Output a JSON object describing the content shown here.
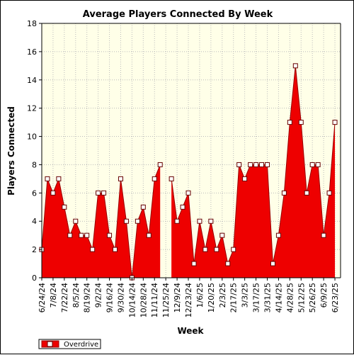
{
  "chart_data": {
    "type": "area",
    "title": "Average Players Connected By Week",
    "xlabel": "Week",
    "ylabel": "Players Connected",
    "ylim": [
      0,
      18
    ],
    "y_ticks": [
      0,
      2,
      4,
      6,
      8,
      10,
      12,
      14,
      16,
      18
    ],
    "grid": true,
    "legend_position": "bottom-left",
    "colors": {
      "area": "#ee0000",
      "line": "#990000",
      "plot_bg": "#ffffe8",
      "grid": "#bbbbbb"
    },
    "x_labels": [
      "6/24/24",
      "7/8/24",
      "7/22/24",
      "8/5/24",
      "8/19/24",
      "9/2/24",
      "9/16/24",
      "9/30/24",
      "10/14/24",
      "10/28/24",
      "11/11/24",
      "11/25/24",
      "12/9/24",
      "12/23/24",
      "1/6/25",
      "1/20/25",
      "2/3/25",
      "2/17/25",
      "3/3/25",
      "3/17/25",
      "3/31/25",
      "4/14/25",
      "4/28/25",
      "5/12/25",
      "5/26/25",
      "6/9/25",
      "6/23/25"
    ],
    "x": [
      "6/24/24",
      "7/1/24",
      "7/8/24",
      "7/15/24",
      "7/22/24",
      "7/29/24",
      "8/5/24",
      "8/12/24",
      "8/19/24",
      "8/26/24",
      "9/2/24",
      "9/9/24",
      "9/16/24",
      "9/23/24",
      "9/30/24",
      "10/7/24",
      "10/14/24",
      "10/21/24",
      "10/28/24",
      "11/4/24",
      "11/11/24",
      "11/18/24",
      "11/25/24",
      "12/2/24",
      "12/9/24",
      "12/16/24",
      "12/23/24",
      "12/30/24",
      "1/6/25",
      "1/13/25",
      "1/20/25",
      "1/27/25",
      "2/3/25",
      "2/10/25",
      "2/17/25",
      "2/24/25",
      "3/3/25",
      "3/10/25",
      "3/17/25",
      "3/24/25",
      "3/31/25",
      "4/7/25",
      "4/14/25",
      "4/21/25",
      "4/28/25",
      "5/5/25",
      "5/12/25",
      "5/19/25",
      "5/26/25",
      "6/2/25",
      "6/9/25",
      "6/16/25",
      "6/23/25",
      "6/30/25"
    ],
    "series": [
      {
        "name": "Overdrive",
        "values": [
          2,
          7,
          6,
          7,
          5,
          3,
          4,
          3,
          3,
          2,
          6,
          6,
          3,
          2,
          7,
          4,
          0,
          4,
          5,
          3,
          7,
          8,
          null,
          7,
          4,
          5,
          6,
          1,
          4,
          2,
          4,
          2,
          3,
          1,
          2,
          8,
          7,
          8,
          8,
          8,
          8,
          1,
          3,
          6,
          11,
          15,
          11,
          6,
          8,
          8,
          3,
          6,
          11,
          null
        ]
      }
    ]
  }
}
